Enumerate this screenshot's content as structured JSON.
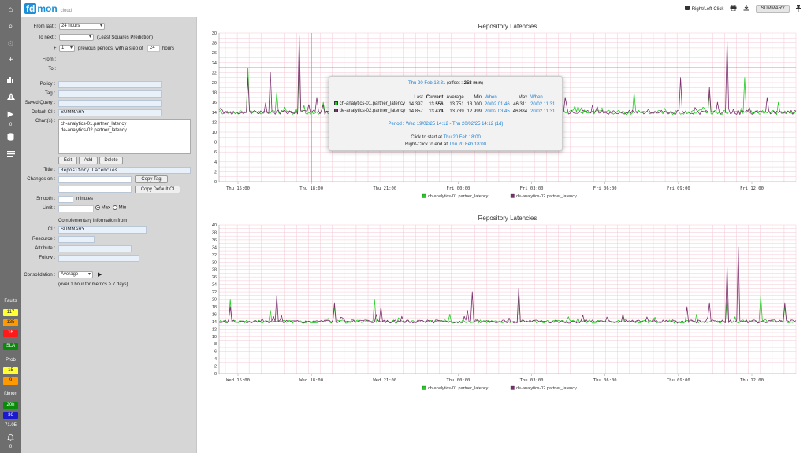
{
  "rail": {
    "counter_0": "0",
    "faults_label": "Faults",
    "faults": [
      {
        "value": "117",
        "bg": "#ffff33",
        "fg": "#222222"
      },
      {
        "value": "135",
        "bg": "#ff9900",
        "fg": "#222222"
      },
      {
        "value": "16",
        "bg": "#ff1a1a",
        "fg": "#ffffff"
      }
    ],
    "sla_label": "SLA",
    "prob_label": "Prob",
    "prob": [
      {
        "value": "15",
        "bg": "#ffff33",
        "fg": "#222222"
      },
      {
        "value": "9",
        "bg": "#ff9900",
        "fg": "#222222"
      }
    ],
    "fdmon_label": "fdmon",
    "fdmon": [
      {
        "value": "20h",
        "bg": "#0a8a0a",
        "fg": "#ffffff"
      },
      {
        "value": "36",
        "bg": "#1a1acc",
        "fg": "#ffffff"
      }
    ],
    "version": "71.05",
    "bell_count": "0"
  },
  "header": {
    "logo_fd": "fd",
    "logo_mon": "mon",
    "logo_cloud": "cloud",
    "right_left_click": "Right/Left-Click",
    "summary_button": "SUMMARY"
  },
  "form": {
    "from_last_label": "From last :",
    "from_last_value": "24 hours",
    "to_next_label": "To next :",
    "to_next_value": "",
    "to_next_hint": "(Least Squares Prediction)",
    "plus": "+",
    "periods_value": "1",
    "periods_text": "previous periods, with a step of",
    "step_value": "24",
    "step_unit": "hours",
    "from_label": "From :",
    "to_label": "To :",
    "policy_label": "Policy :",
    "tag_label": "Tag :",
    "saved_query_label": "Saved Query :",
    "default_ci_label": "Default CI :",
    "default_ci_value": "SUMMARY",
    "charts_label": "Chart(s) :",
    "charts": [
      "ch-analytics-01.partner_latency",
      "de-analytics-02.partner_latency"
    ],
    "edit_btn": "Edit",
    "add_btn": "Add",
    "delete_btn": "Delete",
    "title_label": "Title :",
    "title_value": "Repository Latencies",
    "changes_on_label": "Changes on :",
    "copy_tag_btn": "Copy Tag",
    "copy_default_ci_btn": "Copy Default CI",
    "smooth_label": "Smooth :",
    "smooth_unit": "minutes",
    "limit_label": "Limit :",
    "max_label": "Max",
    "min_label": "Min",
    "complementary_title": "Complementary information from",
    "ci_label": "CI :",
    "ci_value": "SUMMARY",
    "resource_label": "Resource :",
    "attribute_label": "Attribute :",
    "follow_label": "Follow :",
    "consolidation_label": "Consolidation :",
    "consolidation_value": "Average",
    "consolidation_note": "(over 1 hour for metrics > 7 days)"
  },
  "tooltip": {
    "time": "Thu 20 Feb 18:31",
    "offset_prefix": "(offset : ",
    "offset_value": "258 min",
    "offset_suffix": ")",
    "headers": [
      "",
      "Last",
      "Current",
      "Average",
      "Min",
      "When",
      "Max",
      "When"
    ],
    "rows": [
      {
        "color": "#22cc22",
        "name": "ch-analytics-01.partner_latency",
        "last": "14.397",
        "current": "13.556",
        "average": "13.751",
        "min": "13.000",
        "min_when": "20/02 01:46",
        "max": "46.311",
        "max_when": "20/02 11:31"
      },
      {
        "color": "#7b2f6e",
        "name": "de-analytics-02.partner_latency",
        "last": "14.857",
        "current": "13.474",
        "average": "13.739",
        "min": "12.999",
        "min_when": "20/02 03:45",
        "max": "46.884",
        "max_when": "20/02 11:31"
      }
    ],
    "period": "Period : Wed 19/02/25 14:12 - Thu 20/02/25 14:12 (1d)",
    "click_start": "Click to start at ",
    "click_start_time": "Thu 20 Feb 18:00",
    "right_click_end": "Right-Click to end at ",
    "right_click_end_time": "Thu 20 Feb 18:00"
  },
  "chart_data": [
    {
      "type": "line",
      "title": "Repository Latencies",
      "xlabel": "",
      "ylabel": "",
      "ylim": [
        0,
        30
      ],
      "yticks": [
        0,
        2,
        4,
        6,
        8,
        10,
        12,
        14,
        16,
        18,
        20,
        22,
        24,
        26,
        28,
        30
      ],
      "xticks": [
        "Thu 15:00",
        "Thu 18:00",
        "Thu 21:00",
        "Fri 00:00",
        "Fri 03:00",
        "Fri 06:00",
        "Fri 09:00",
        "Fri 12:00"
      ],
      "grid": true,
      "legend": "bottom-center",
      "threshold": 23,
      "cursor": "Thu 18:00",
      "baseline": 14,
      "series": [
        {
          "name": "ch-analytics-01.partner_latency",
          "color": "#22cc22",
          "peaks": [
            [
              0.05,
              23
            ],
            [
              0.1,
              18
            ],
            [
              0.14,
              24
            ],
            [
              0.18,
              16
            ],
            [
              0.27,
              21
            ],
            [
              0.53,
              19
            ],
            [
              0.72,
              18
            ],
            [
              0.85,
              18
            ],
            [
              0.91,
              21
            ],
            [
              0.97,
              16
            ]
          ]
        },
        {
          "name": "de-analytics-02.partner_latency",
          "color": "#7b2f6e",
          "peaks": [
            [
              0.05,
              21
            ],
            [
              0.09,
              22
            ],
            [
              0.14,
              29.5
            ],
            [
              0.17,
              17
            ],
            [
              0.27,
              18
            ],
            [
              0.36,
              18
            ],
            [
              0.6,
              17
            ],
            [
              0.8,
              21
            ],
            [
              0.85,
              19
            ],
            [
              0.88,
              28.5
            ],
            [
              0.95,
              17
            ]
          ]
        }
      ]
    },
    {
      "type": "line",
      "title": "Repository Latencies",
      "xlabel": "",
      "ylabel": "",
      "ylim": [
        0,
        40
      ],
      "yticks": [
        0,
        2,
        4,
        6,
        8,
        10,
        12,
        14,
        16,
        18,
        20,
        22,
        24,
        26,
        28,
        30,
        32,
        34,
        36,
        38,
        40
      ],
      "xticks": [
        "Wed 15:00",
        "Wed 18:00",
        "Wed 21:00",
        "Thu 00:00",
        "Thu 03:00",
        "Thu 06:00",
        "Thu 09:00",
        "Thu 12:00"
      ],
      "grid": true,
      "legend": "bottom-center",
      "baseline": 14,
      "series": [
        {
          "name": "ch-analytics-01.partner_latency",
          "color": "#22cc22",
          "peaks": [
            [
              0.02,
              20
            ],
            [
              0.09,
              17
            ],
            [
              0.2,
              18
            ],
            [
              0.27,
              20
            ],
            [
              0.4,
              16
            ],
            [
              0.52,
              22
            ],
            [
              0.7,
              16
            ],
            [
              0.88,
              20
            ],
            [
              0.94,
              21
            ],
            [
              0.98,
              18
            ]
          ]
        },
        {
          "name": "de-analytics-02.partner_latency",
          "color": "#7b2f6e",
          "peaks": [
            [
              0.02,
              18
            ],
            [
              0.1,
              21
            ],
            [
              0.2,
              19
            ],
            [
              0.28,
              18
            ],
            [
              0.43,
              17
            ],
            [
              0.44,
              22
            ],
            [
              0.52,
              23
            ],
            [
              0.7,
              16
            ],
            [
              0.81,
              18
            ],
            [
              0.85,
              19
            ],
            [
              0.88,
              29
            ],
            [
              0.9,
              34
            ],
            [
              0.98,
              19
            ]
          ]
        }
      ]
    }
  ]
}
